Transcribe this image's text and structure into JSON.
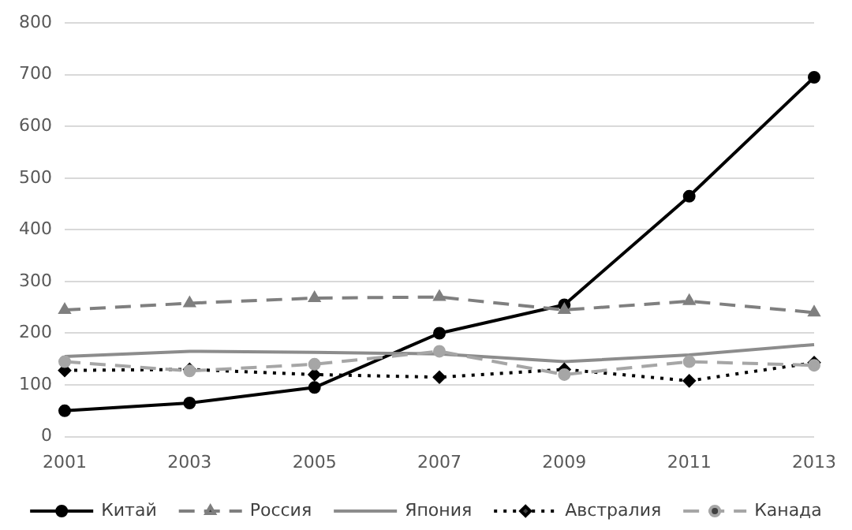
{
  "chart_data": {
    "type": "line",
    "categories": [
      "2001",
      "2003",
      "2005",
      "2007",
      "2009",
      "2011",
      "2013"
    ],
    "series": [
      {
        "name": "Китай",
        "color": "#000000",
        "marker": "circle",
        "line_style": "solid",
        "values": [
          50,
          65,
          95,
          200,
          255,
          465,
          695
        ]
      },
      {
        "name": "Россия",
        "color": "#7f7f7f",
        "marker": "triangle",
        "line_style": "dashed",
        "values": [
          245,
          258,
          268,
          270,
          245,
          262,
          240
        ]
      },
      {
        "name": "Япония",
        "color": "#8c8c8c",
        "marker": "none",
        "line_style": "solid",
        "values": [
          155,
          165,
          163,
          160,
          145,
          158,
          178
        ]
      },
      {
        "name": "Австралия",
        "color": "#000000",
        "marker": "diamond",
        "line_style": "dotted",
        "values": [
          128,
          130,
          120,
          115,
          130,
          108,
          143
        ]
      },
      {
        "name": "Канада",
        "color": "#a6a6a6",
        "marker": "circle",
        "line_style": "dashed",
        "values": [
          145,
          127,
          140,
          165,
          120,
          145,
          138
        ]
      }
    ],
    "ylim": [
      0,
      800
    ],
    "yticks": [
      0,
      100,
      200,
      300,
      400,
      500,
      600,
      700,
      800
    ],
    "grid": "y",
    "legend": "bottom"
  }
}
